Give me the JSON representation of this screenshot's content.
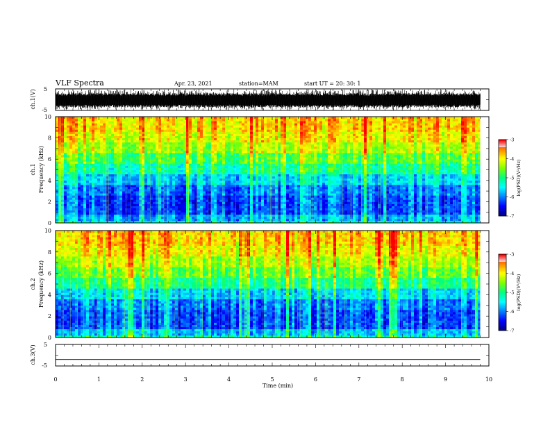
{
  "header": {
    "title": "VLF Spectra",
    "date": "Apr. 23, 2021",
    "station": "station=MAM",
    "start_ut": "start UT =  20: 30: 1"
  },
  "colors": {
    "colormap": [
      "#000080",
      "#0000ff",
      "#0080ff",
      "#00ffff",
      "#00ff80",
      "#80ff00",
      "#ffff00",
      "#ff8000",
      "#ff0000",
      "#ffffff"
    ],
    "trace": "#000000",
    "axes": "#000000"
  },
  "chart_data": [
    {
      "type": "line",
      "panel": "waveform-ch1",
      "ylabel": "ch.1(V)",
      "xlim": [
        0,
        10
      ],
      "ylim": [
        -5,
        5
      ],
      "yticks": [
        "5",
        "-5"
      ],
      "data_extent_min": 9.8,
      "typical_range_v": [
        -3.5,
        3.0
      ]
    },
    {
      "type": "heatmap",
      "panel": "spectrogram-ch1",
      "ylabel": "ch.1\nFrequency (kHz)",
      "xlim": [
        0,
        10
      ],
      "ylim": [
        0,
        10
      ],
      "yticks": [
        "0",
        "2",
        "4",
        "6",
        "8",
        "10"
      ],
      "frequency_bands_khz": [
        0,
        0.3,
        0.8,
        1.5,
        2.5,
        3.5,
        4.5,
        5.5,
        6.5,
        7.5,
        8.5,
        10
      ],
      "log_psd_by_band": [
        -5.3,
        -5.8,
        -6.2,
        -6.2,
        -6.0,
        -5.6,
        -5.1,
        -4.7,
        -4.3,
        -4.0,
        -3.8
      ],
      "colorbar": {
        "label": "log(PSD)(V²/Hz)",
        "range": [
          -7,
          -3
        ],
        "ticks": [
          "-3",
          "-4",
          "-5",
          "-6",
          "-7"
        ]
      }
    },
    {
      "type": "heatmap",
      "panel": "spectrogram-ch2",
      "ylabel": "ch.2\nFrequency (kHz)",
      "xlim": [
        0,
        10
      ],
      "ylim": [
        0,
        10
      ],
      "yticks": [
        "0",
        "2",
        "4",
        "6",
        "8",
        "10"
      ],
      "frequency_bands_khz": [
        0,
        0.3,
        0.8,
        1.5,
        2.5,
        3.5,
        4.5,
        5.5,
        6.5,
        7.5,
        8.5,
        10
      ],
      "log_psd_by_band": [
        -5.2,
        -5.7,
        -6.2,
        -6.2,
        -6.0,
        -5.6,
        -5.0,
        -4.6,
        -4.3,
        -4.0,
        -3.8
      ],
      "colorbar": {
        "label": "log(PSD)(V²/Hz)",
        "range": [
          -7,
          -3
        ],
        "ticks": [
          "-3",
          "-4",
          "-5",
          "-6",
          "-7"
        ]
      }
    },
    {
      "type": "line",
      "panel": "waveform-ch3",
      "ylabel": "ch.3(V)",
      "xlabel": "Time  (min)",
      "xlim": [
        0,
        10
      ],
      "ylim": [
        -5,
        5
      ],
      "yticks": [
        "5",
        "-5"
      ],
      "xticks": [
        "0",
        "1",
        "2",
        "3",
        "4",
        "5",
        "6",
        "7",
        "8",
        "9",
        "10"
      ],
      "x": [
        0,
        9.8
      ],
      "y": [
        -2,
        -2
      ]
    }
  ]
}
